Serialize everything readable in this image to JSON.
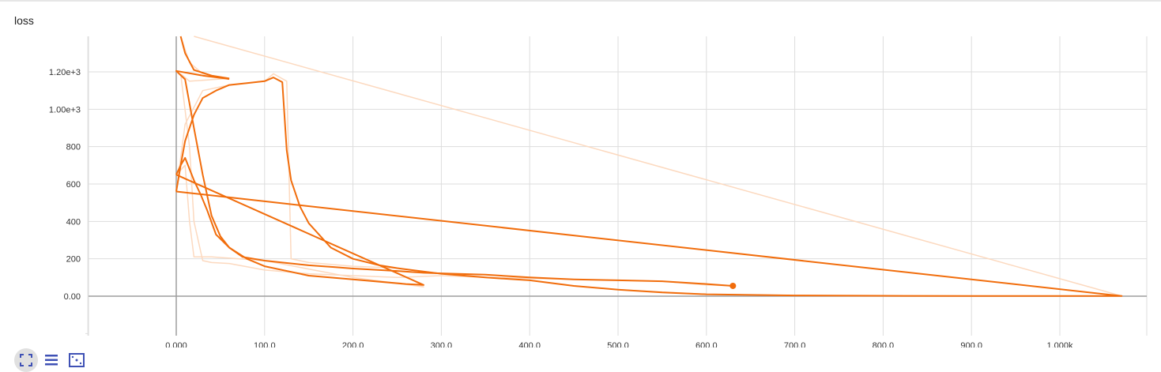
{
  "card": {
    "title": "loss"
  },
  "toolbar": [
    {
      "name": "fit-domain-icon"
    },
    {
      "name": "data-table-icon"
    },
    {
      "name": "toggle-y-log-icon"
    }
  ],
  "colors": {
    "main": "#f16d0c",
    "raw": "#fcd9bf",
    "axis": "#9e9e9e",
    "grid": "#dddddd"
  },
  "chart_data": {
    "type": "line",
    "title": "loss",
    "xlabel": "",
    "ylabel": "",
    "xlim": [
      -100,
      1000
    ],
    "ylim": [
      -200,
      1400
    ],
    "x_ticks": [
      0,
      100,
      200,
      300,
      400,
      500,
      600,
      700,
      800,
      900,
      1000
    ],
    "x_tick_labels": [
      "0.000",
      "100.0",
      "200.0",
      "300.0",
      "400.0",
      "500.0",
      "600.0",
      "700.0",
      "800.0",
      "900.0",
      "1.000k"
    ],
    "y_ticks": [
      0,
      200,
      400,
      600,
      800,
      1000,
      1200
    ],
    "y_tick_labels": [
      "0.00",
      "200",
      "400",
      "600",
      "800",
      "1.00e+3",
      "1.20e+3"
    ],
    "grid": true,
    "series": [
      {
        "smoothed": [
          [
            60,
            1162
          ],
          [
            30,
            1180
          ],
          [
            0,
            1205
          ],
          [
            10,
            1160
          ],
          [
            20,
            900
          ],
          [
            30,
            650
          ],
          [
            40,
            430
          ],
          [
            50,
            320
          ],
          [
            60,
            260
          ],
          [
            75,
            210
          ],
          [
            100,
            190
          ],
          [
            120,
            180
          ],
          [
            150,
            165
          ],
          [
            180,
            155
          ],
          [
            200,
            148
          ],
          [
            250,
            135
          ],
          [
            280,
            125
          ],
          [
            300,
            122
          ],
          [
            350,
            115
          ],
          [
            400,
            100
          ],
          [
            450,
            90
          ],
          [
            500,
            85
          ],
          [
            550,
            80
          ],
          [
            600,
            65
          ],
          [
            630,
            55
          ]
        ],
        "raw": [
          [
            60,
            1165
          ],
          [
            15,
            1150
          ],
          [
            5,
            1190
          ],
          [
            15,
            800
          ],
          [
            20,
            400
          ],
          [
            30,
            190
          ],
          [
            40,
            180
          ],
          [
            60,
            175
          ],
          [
            100,
            140
          ],
          [
            150,
            120
          ],
          [
            200,
            110
          ],
          [
            250,
            100
          ],
          [
            300,
            110
          ],
          [
            350,
            100
          ],
          [
            400,
            95
          ],
          [
            450,
            90
          ],
          [
            500,
            85
          ],
          [
            550,
            80
          ],
          [
            600,
            60
          ],
          [
            630,
            55
          ]
        ]
      },
      {
        "smoothed": [
          [
            0,
            560
          ],
          [
            5,
            700
          ],
          [
            10,
            830
          ],
          [
            20,
            970
          ],
          [
            30,
            1060
          ],
          [
            45,
            1100
          ],
          [
            60,
            1130
          ],
          [
            80,
            1140
          ],
          [
            100,
            1150
          ],
          [
            110,
            1170
          ],
          [
            120,
            1145
          ],
          [
            125,
            780
          ],
          [
            130,
            620
          ],
          [
            140,
            480
          ],
          [
            150,
            390
          ],
          [
            175,
            260
          ],
          [
            200,
            200
          ],
          [
            230,
            165
          ],
          [
            250,
            150
          ],
          [
            300,
            120
          ],
          [
            350,
            100
          ],
          [
            400,
            85
          ],
          [
            450,
            55
          ],
          [
            500,
            35
          ],
          [
            550,
            20
          ],
          [
            600,
            10
          ],
          [
            700,
            4
          ],
          [
            800,
            2
          ],
          [
            900,
            1
          ],
          [
            1000,
            1
          ],
          [
            1070,
            1
          ],
          [
            0,
            560
          ]
        ],
        "raw": [
          [
            0,
            560
          ],
          [
            10,
            920
          ],
          [
            30,
            1100
          ],
          [
            60,
            1130
          ],
          [
            100,
            1150
          ],
          [
            110,
            1190
          ],
          [
            125,
            1150
          ],
          [
            130,
            200
          ],
          [
            150,
            180
          ],
          [
            200,
            160
          ],
          [
            250,
            150
          ],
          [
            300,
            120
          ],
          [
            350,
            100
          ],
          [
            400,
            85
          ],
          [
            450,
            55
          ],
          [
            500,
            35
          ],
          [
            600,
            10
          ],
          [
            700,
            4
          ],
          [
            800,
            2
          ],
          [
            900,
            1
          ],
          [
            1070,
            1
          ],
          [
            20,
            1400
          ]
        ]
      },
      {
        "smoothed": [
          [
            0,
            650
          ],
          [
            280,
            60
          ],
          [
            260,
            65
          ],
          [
            200,
            90
          ],
          [
            150,
            110
          ],
          [
            100,
            160
          ],
          [
            80,
            200
          ],
          [
            60,
            260
          ],
          [
            45,
            330
          ],
          [
            35,
            460
          ],
          [
            28,
            540
          ],
          [
            20,
            620
          ],
          [
            10,
            740
          ],
          [
            5,
            700
          ],
          [
            0,
            650
          ]
        ],
        "raw": [
          [
            0,
            650
          ],
          [
            270,
            80
          ],
          [
            280,
            50
          ],
          [
            200,
            100
          ],
          [
            100,
            190
          ],
          [
            40,
            210
          ],
          [
            20,
            210
          ],
          [
            15,
            400
          ],
          [
            10,
            700
          ],
          [
            0,
            650
          ]
        ]
      },
      {
        "smoothed": [
          [
            5,
            1400
          ],
          [
            10,
            1300
          ],
          [
            20,
            1210
          ],
          [
            40,
            1180
          ],
          [
            60,
            1165
          ]
        ],
        "raw": [
          [
            5,
            1400
          ],
          [
            15,
            1250
          ],
          [
            30,
            1190
          ],
          [
            60,
            1160
          ]
        ]
      }
    ],
    "highlight_point": [
      630,
      55
    ]
  }
}
